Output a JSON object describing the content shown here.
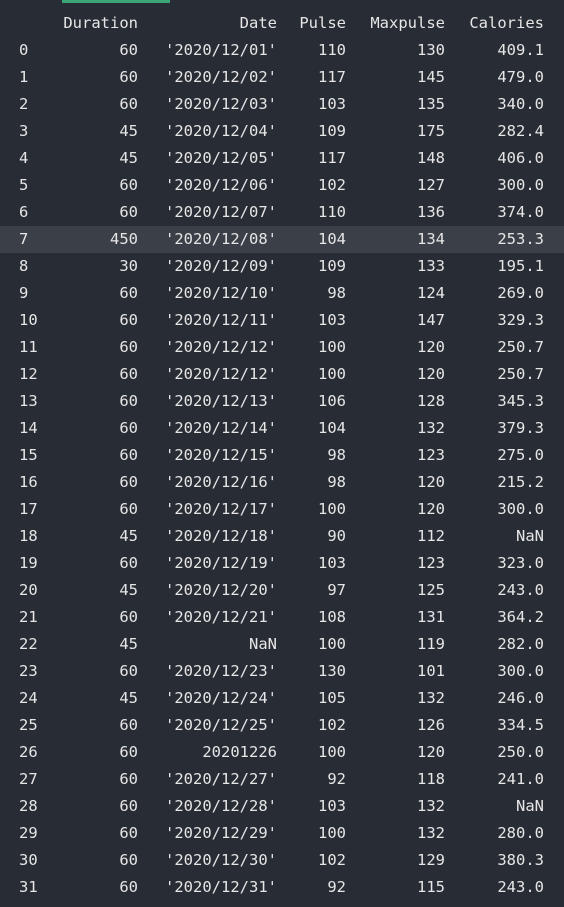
{
  "columns": [
    "Duration",
    "Date",
    "Pulse",
    "Maxpulse",
    "Calories"
  ],
  "highlighted_row": 7,
  "rows": [
    [
      "0",
      "60",
      "'2020/12/01'",
      "110",
      "130",
      "409.1"
    ],
    [
      "1",
      "60",
      "'2020/12/02'",
      "117",
      "145",
      "479.0"
    ],
    [
      "2",
      "60",
      "'2020/12/03'",
      "103",
      "135",
      "340.0"
    ],
    [
      "3",
      "45",
      "'2020/12/04'",
      "109",
      "175",
      "282.4"
    ],
    [
      "4",
      "45",
      "'2020/12/05'",
      "117",
      "148",
      "406.0"
    ],
    [
      "5",
      "60",
      "'2020/12/06'",
      "102",
      "127",
      "300.0"
    ],
    [
      "6",
      "60",
      "'2020/12/07'",
      "110",
      "136",
      "374.0"
    ],
    [
      "7",
      "450",
      "'2020/12/08'",
      "104",
      "134",
      "253.3"
    ],
    [
      "8",
      "30",
      "'2020/12/09'",
      "109",
      "133",
      "195.1"
    ],
    [
      "9",
      "60",
      "'2020/12/10'",
      "98",
      "124",
      "269.0"
    ],
    [
      "10",
      "60",
      "'2020/12/11'",
      "103",
      "147",
      "329.3"
    ],
    [
      "11",
      "60",
      "'2020/12/12'",
      "100",
      "120",
      "250.7"
    ],
    [
      "12",
      "60",
      "'2020/12/12'",
      "100",
      "120",
      "250.7"
    ],
    [
      "13",
      "60",
      "'2020/12/13'",
      "106",
      "128",
      "345.3"
    ],
    [
      "14",
      "60",
      "'2020/12/14'",
      "104",
      "132",
      "379.3"
    ],
    [
      "15",
      "60",
      "'2020/12/15'",
      "98",
      "123",
      "275.0"
    ],
    [
      "16",
      "60",
      "'2020/12/16'",
      "98",
      "120",
      "215.2"
    ],
    [
      "17",
      "60",
      "'2020/12/17'",
      "100",
      "120",
      "300.0"
    ],
    [
      "18",
      "45",
      "'2020/12/18'",
      "90",
      "112",
      "NaN"
    ],
    [
      "19",
      "60",
      "'2020/12/19'",
      "103",
      "123",
      "323.0"
    ],
    [
      "20",
      "45",
      "'2020/12/20'",
      "97",
      "125",
      "243.0"
    ],
    [
      "21",
      "60",
      "'2020/12/21'",
      "108",
      "131",
      "364.2"
    ],
    [
      "22",
      "45",
      "NaN",
      "100",
      "119",
      "282.0"
    ],
    [
      "23",
      "60",
      "'2020/12/23'",
      "130",
      "101",
      "300.0"
    ],
    [
      "24",
      "45",
      "'2020/12/24'",
      "105",
      "132",
      "246.0"
    ],
    [
      "25",
      "60",
      "'2020/12/25'",
      "102",
      "126",
      "334.5"
    ],
    [
      "26",
      "60",
      "20201226",
      "100",
      "120",
      "250.0"
    ],
    [
      "27",
      "60",
      "'2020/12/27'",
      "92",
      "118",
      "241.0"
    ],
    [
      "28",
      "60",
      "'2020/12/28'",
      "103",
      "132",
      "NaN"
    ],
    [
      "29",
      "60",
      "'2020/12/29'",
      "100",
      "132",
      "280.0"
    ],
    [
      "30",
      "60",
      "'2020/12/30'",
      "102",
      "129",
      "380.3"
    ],
    [
      "31",
      "60",
      "'2020/12/31'",
      "92",
      "115",
      "243.0"
    ]
  ]
}
